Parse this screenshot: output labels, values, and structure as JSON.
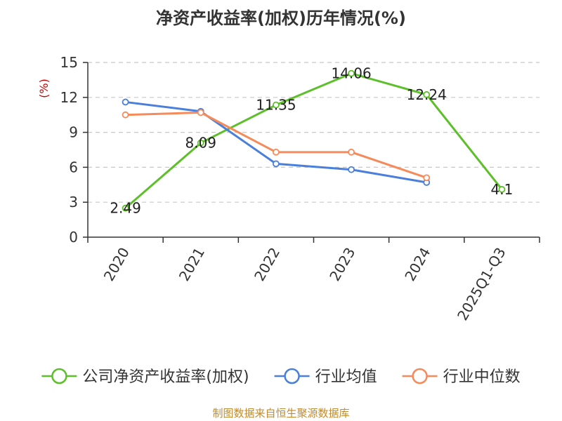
{
  "chart_data": {
    "type": "line",
    "title": "净资产收益率(加权)历年情况(%)",
    "ylabel": "(%)",
    "xlabel": "",
    "categories": [
      "2020",
      "2021",
      "2022",
      "2023",
      "2024",
      "2025Q1-Q3"
    ],
    "ylim": [
      0,
      15
    ],
    "yticks": [
      0,
      3,
      6,
      9,
      12,
      15
    ],
    "grid": true,
    "legend_position": "bottom",
    "series": [
      {
        "name": "公司净资产收益率(加权)",
        "color": "#5dbf2a",
        "values": [
          2.49,
          8.09,
          11.35,
          14.06,
          12.24,
          4.1
        ],
        "labels": [
          "2.49",
          "8.09",
          "11.35",
          "14.06",
          "12.24",
          "4.1"
        ]
      },
      {
        "name": "行业均值",
        "color": "#4a7fdc",
        "values": [
          11.6,
          10.8,
          6.3,
          5.8,
          4.7,
          null
        ]
      },
      {
        "name": "行业中位数",
        "color": "#f58b5a",
        "values": [
          10.5,
          10.7,
          7.3,
          7.3,
          5.1,
          null
        ]
      }
    ]
  },
  "ylabel_color": "#cc0000",
  "source": {
    "text": "制图数据来自恒生聚源数据库",
    "color": "#c08a2e"
  }
}
